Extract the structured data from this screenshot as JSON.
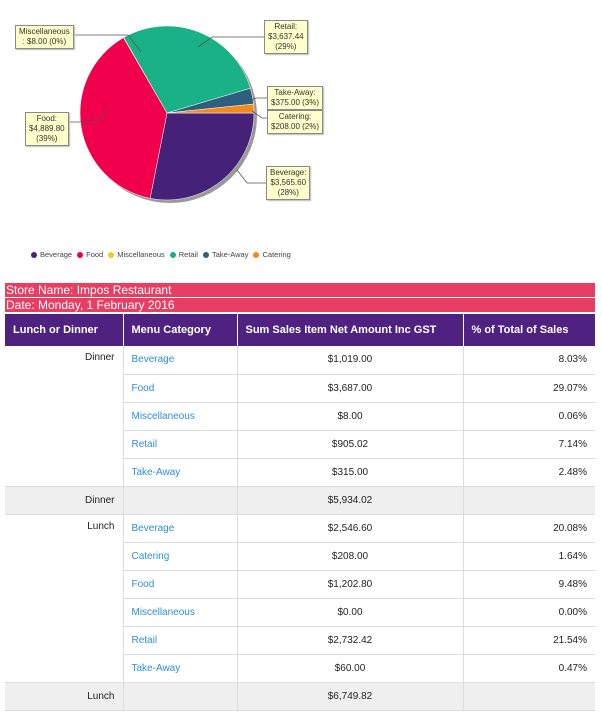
{
  "chart_data": {
    "type": "pie",
    "slices": [
      {
        "label": "Beverage",
        "value": 3565.6,
        "value_text": "$3,565.60",
        "percent_text": "(28%)",
        "color": "#452277"
      },
      {
        "label": "Food",
        "value": 4889.8,
        "value_text": "$4,889.80",
        "percent_text": "(39%)",
        "color": "#f0004c"
      },
      {
        "label": "Miscellaneous",
        "value": 8.0,
        "value_text": ": $8.00 (0%)",
        "percent_text": "",
        "color": "#f5c81b"
      },
      {
        "label": "Retail",
        "value": 3637.44,
        "value_text": "$3,637.44",
        "percent_text": "(29%)",
        "color": "#1ab187"
      },
      {
        "label": "Take-Away",
        "value": 375.0,
        "value_text": "$375.00 (3%)",
        "percent_text": "",
        "color": "#2f5f7f"
      },
      {
        "label": "Catering",
        "value": 208.0,
        "value_text": "$208.00 (2%)",
        "percent_text": "",
        "color": "#f28a1d"
      }
    ],
    "legend_position": "bottom-left"
  },
  "callouts": {
    "misc": {
      "label": "Miscellaneous",
      "value": ": $8.00 (0%)"
    },
    "food": {
      "label": "Food:",
      "value": "$4,889.80",
      "pct": "(39%)"
    },
    "retail": {
      "label": "Retail:",
      "value": "$3,637.44",
      "pct": "(29%)"
    },
    "takeaway": {
      "label": "Take-Away:",
      "value": "$375.00 (3%)"
    },
    "catering": {
      "label": "Catering:",
      "value": "$208.00 (2%)"
    },
    "beverage": {
      "label": "Beverage:",
      "value": "$3,565.60",
      "pct": "(28%)"
    }
  },
  "legend": [
    {
      "label": "Beverage",
      "color": "#452277"
    },
    {
      "label": "Food",
      "color": "#f0004c"
    },
    {
      "label": "Miscellaneous",
      "color": "#f5c81b"
    },
    {
      "label": "Retail",
      "color": "#1ab187"
    },
    {
      "label": "Take-Away",
      "color": "#2f5f7f"
    },
    {
      "label": "Catering",
      "color": "#f28a1d"
    }
  ],
  "report": {
    "store_name": "Store Name: Impos Restaurant",
    "date": "Date: Monday, 1 February 2016",
    "columns": [
      "Lunch or Dinner",
      "Menu Category",
      "Sum Sales Item Net Amount Inc GST",
      "% of Total of Sales"
    ],
    "dinner_label": "Dinner",
    "dinner_rows": [
      {
        "category": "Beverage",
        "amount": "$1,019.00",
        "pct": "8.03%"
      },
      {
        "category": "Food",
        "amount": "$3,687.00",
        "pct": "29.07%"
      },
      {
        "category": "Miscellaneous",
        "amount": "$8.00",
        "pct": "0.06%"
      },
      {
        "category": "Retail",
        "amount": "$905.02",
        "pct": "7.14%"
      },
      {
        "category": "Take-Away",
        "amount": "$315.00",
        "pct": "2.48%"
      }
    ],
    "dinner_subtotal": {
      "label": "Dinner",
      "amount": "$5,934.02"
    },
    "lunch_label": "Lunch",
    "lunch_rows": [
      {
        "category": "Beverage",
        "amount": "$2,546.60",
        "pct": "20.08%"
      },
      {
        "category": "Catering",
        "amount": "$208.00",
        "pct": "1.64%"
      },
      {
        "category": "Food",
        "amount": "$1,202.80",
        "pct": "9.48%"
      },
      {
        "category": "Miscellaneous",
        "amount": "$0.00",
        "pct": "0.00%"
      },
      {
        "category": "Retail",
        "amount": "$2,732.42",
        "pct": "21.54%"
      },
      {
        "category": "Take-Away",
        "amount": "$60.00",
        "pct": "0.47%"
      }
    ],
    "lunch_subtotal": {
      "label": "Lunch",
      "amount": "$6,749.82"
    }
  },
  "colors": {
    "banner": "#e83e63",
    "header": "#4f2282",
    "link": "#2f8fd6",
    "subtotal_bg": "#efefef",
    "callout_bg": "#ffffcc"
  }
}
